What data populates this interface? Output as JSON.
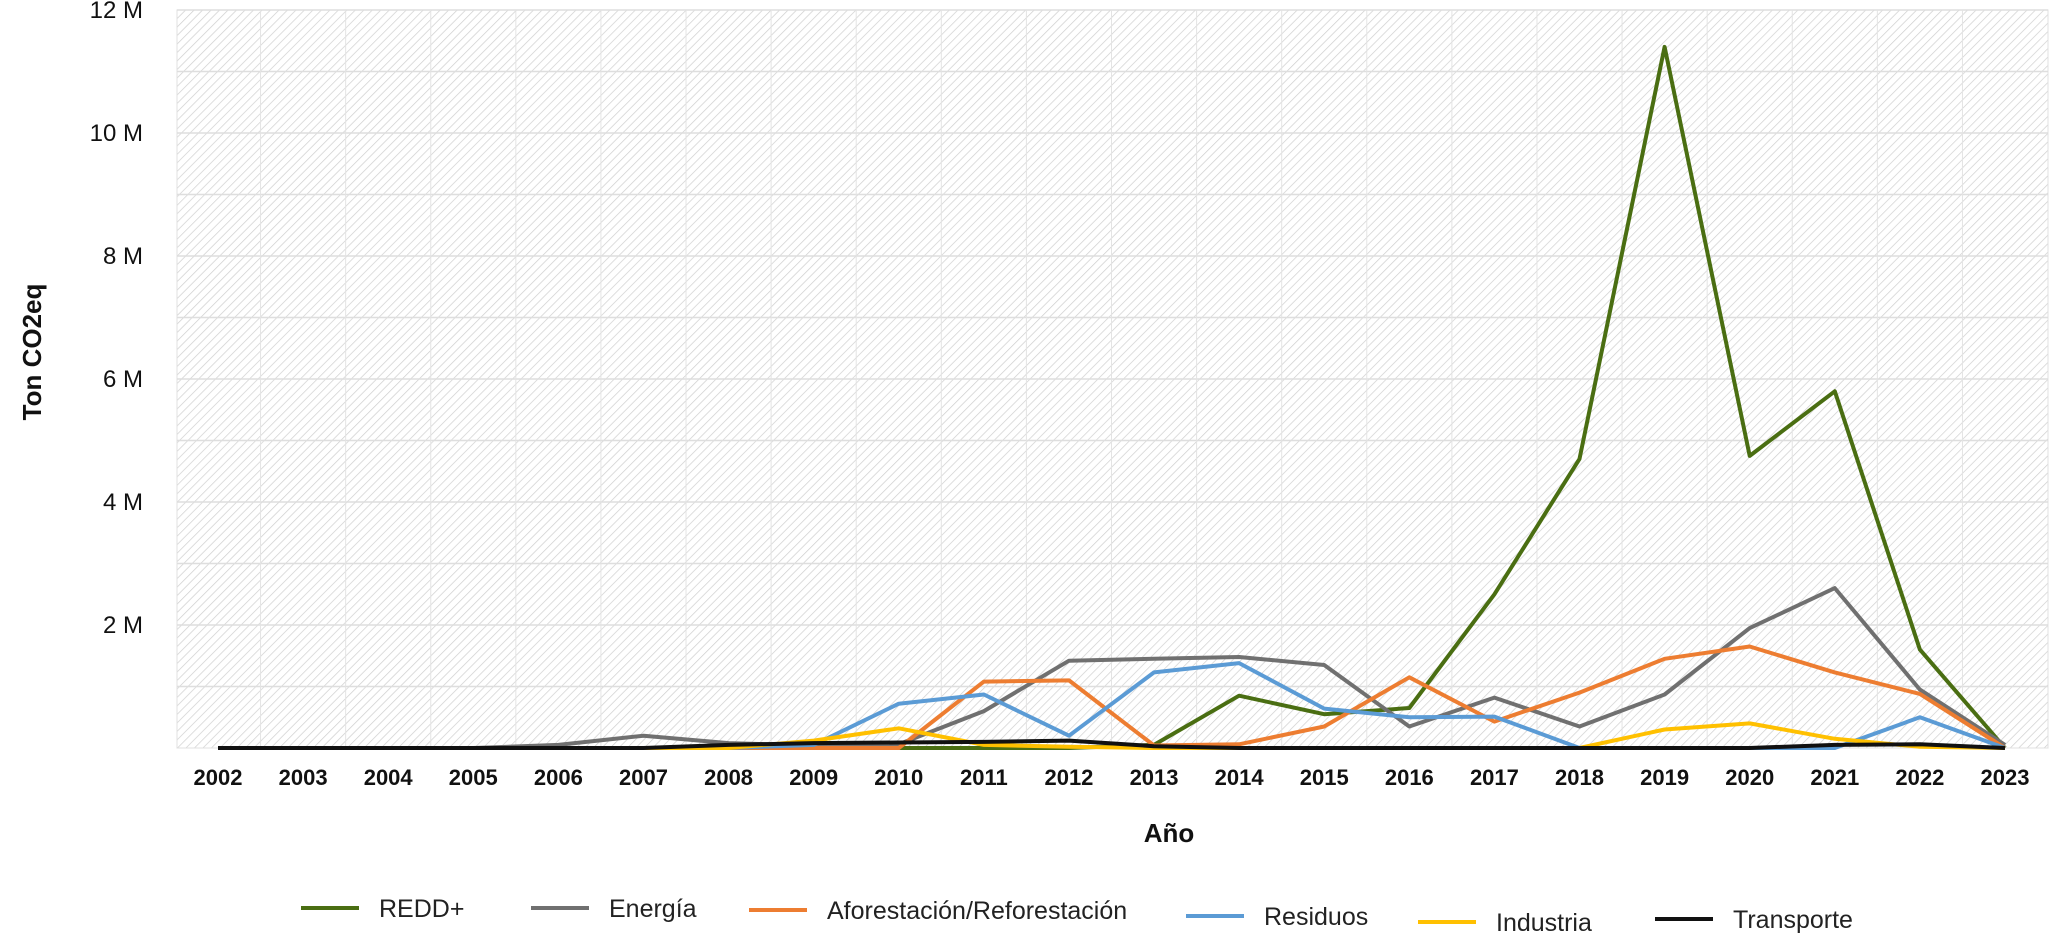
{
  "chart_data": {
    "type": "line",
    "xlabel": "Año",
    "ylabel": "Ton CO2eq",
    "ylim": [
      0,
      12000000
    ],
    "y_ticks": [
      2000000,
      4000000,
      6000000,
      8000000,
      10000000,
      12000000
    ],
    "y_tick_labels": [
      "2 M",
      "4 M",
      "6 M",
      "8 M",
      "10 M",
      "12 M"
    ],
    "categories": [
      "2002",
      "2003",
      "2004",
      "2005",
      "2006",
      "2007",
      "2008",
      "2009",
      "2010",
      "2011",
      "2012",
      "2013",
      "2014",
      "2015",
      "2016",
      "2017",
      "2018",
      "2019",
      "2020",
      "2021",
      "2022",
      "2023"
    ],
    "grid": true,
    "legend_position": "bottom",
    "series": [
      {
        "name": "REDD+",
        "color": "#4a6e12",
        "values": [
          0,
          0,
          0,
          0,
          0,
          0,
          0,
          0,
          0,
          0,
          0,
          50000,
          850000,
          550000,
          650000,
          2500000,
          4700000,
          11400000,
          4750000,
          5800000,
          1600000,
          0
        ]
      },
      {
        "name": "Energía",
        "color": "#707070",
        "values": [
          0,
          0,
          0,
          0,
          50000,
          200000,
          80000,
          40000,
          60000,
          600000,
          1420000,
          1450000,
          1480000,
          1350000,
          350000,
          820000,
          350000,
          870000,
          1950000,
          2600000,
          950000,
          50000
        ]
      },
      {
        "name": "Aforestación/Reforestación",
        "color": "#ed7d31",
        "values": [
          0,
          0,
          0,
          0,
          0,
          0,
          0,
          0,
          0,
          1080000,
          1100000,
          40000,
          60000,
          350000,
          1150000,
          430000,
          900000,
          1450000,
          1650000,
          1230000,
          880000,
          0
        ]
      },
      {
        "name": "Residuos",
        "color": "#5b9bd5",
        "values": [
          0,
          0,
          0,
          0,
          0,
          0,
          0,
          50000,
          720000,
          870000,
          200000,
          1230000,
          1380000,
          640000,
          500000,
          510000,
          0,
          0,
          0,
          0,
          500000,
          0
        ]
      },
      {
        "name": "Industria",
        "color": "#ffc000",
        "values": [
          0,
          0,
          0,
          0,
          0,
          0,
          0,
          120000,
          320000,
          50000,
          20000,
          0,
          0,
          0,
          0,
          0,
          0,
          300000,
          400000,
          150000,
          20000,
          0
        ]
      },
      {
        "name": "Transporte",
        "color": "#111111",
        "values": [
          0,
          0,
          0,
          0,
          0,
          0,
          50000,
          80000,
          90000,
          100000,
          120000,
          30000,
          0,
          0,
          0,
          0,
          0,
          0,
          0,
          50000,
          60000,
          0
        ]
      }
    ]
  }
}
